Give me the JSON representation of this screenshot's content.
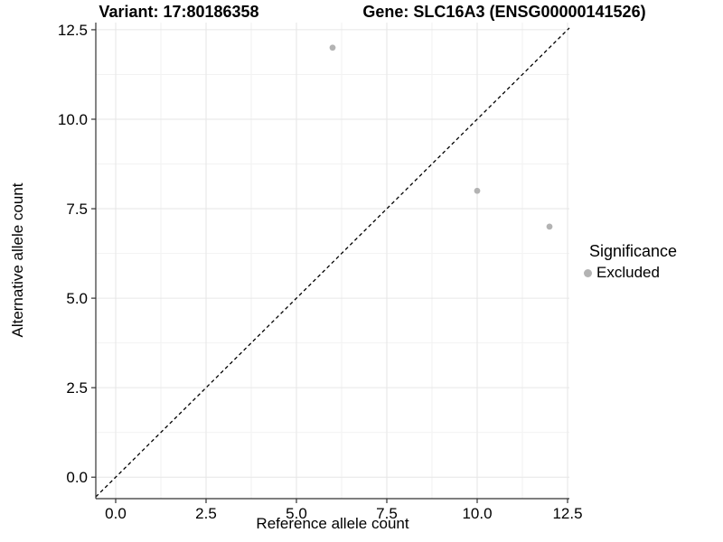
{
  "figure": {
    "titles": {
      "variant": "Variant: 17:80186358",
      "gene": "Gene: SLC16A3 (ENSG00000141526)"
    }
  },
  "axes": {
    "x": {
      "title": "Reference allele count",
      "tick_labels": [
        "0.0",
        "2.5",
        "5.0",
        "7.5",
        "10.0",
        "12.5"
      ]
    },
    "y": {
      "title": "Alternative allele count",
      "tick_labels": [
        "0.0",
        "2.5",
        "5.0",
        "7.5",
        "10.0",
        "12.5"
      ]
    }
  },
  "legend": {
    "title": "Significance",
    "items": [
      {
        "label": "Excluded",
        "color": "#b3b3b3",
        "marker": "circle-icon"
      }
    ]
  },
  "chart_data": {
    "type": "scatter",
    "title": "Variant: 17:80186358 — Gene: SLC16A3 (ENSG00000141526)",
    "xlabel": "Reference allele count",
    "ylabel": "Alternative allele count",
    "xlim": [
      -0.55,
      12.55
    ],
    "ylim": [
      -0.6,
      12.7
    ],
    "x_ticks": [
      0,
      2.5,
      5,
      7.5,
      10,
      12.5
    ],
    "y_ticks": [
      0,
      2.5,
      5,
      7.5,
      10,
      12.5
    ],
    "grid": "major+minor",
    "legend_position": "right",
    "series": [
      {
        "name": "Excluded",
        "color": "#b3b3b3",
        "points": [
          [
            6,
            12
          ],
          [
            10,
            8
          ],
          [
            12,
            7
          ]
        ]
      }
    ],
    "reference_line": {
      "kind": "y=x",
      "style": "dashed",
      "color": "#000000"
    }
  },
  "colors": {
    "background": "#ffffff",
    "grid_major": "#e6e6e6",
    "grid_minor": "#f2f2f2",
    "axis_line": "#333333",
    "point": "#b3b3b3",
    "text": "#000000"
  }
}
